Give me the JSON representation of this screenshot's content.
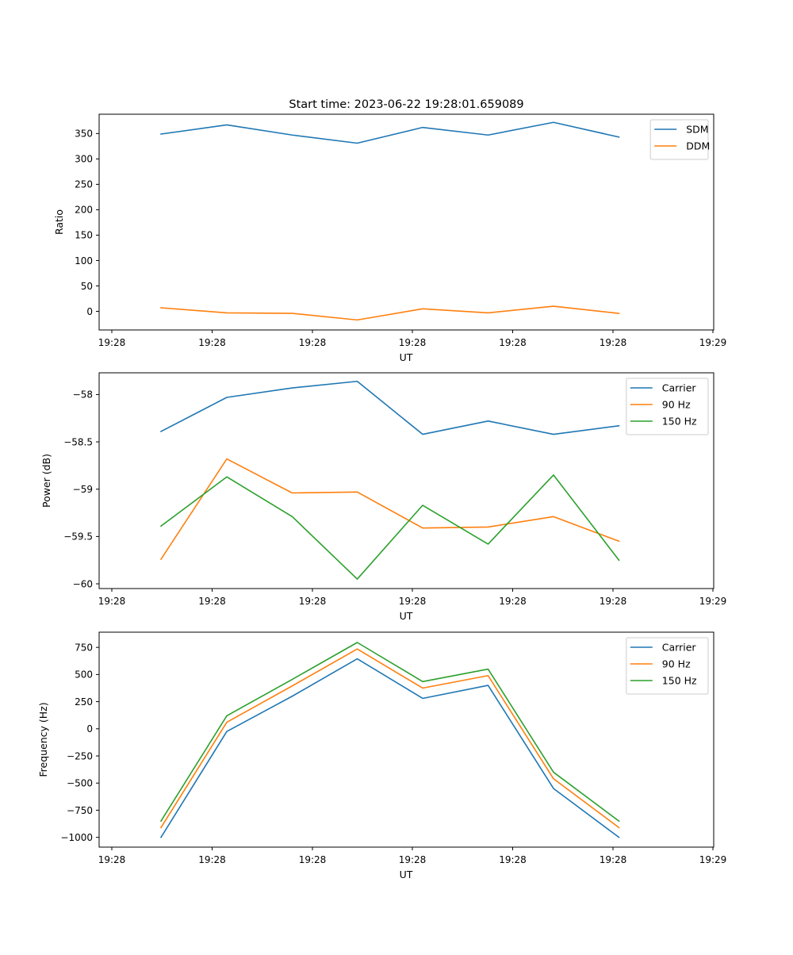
{
  "figure": {
    "title": "Start time: 2023-06-22 19:28:01.659089"
  },
  "chart_data": [
    {
      "type": "line",
      "xlabel": "UT",
      "ylabel": "Ratio",
      "xticks": [
        "19:28",
        "19:28",
        "19:28",
        "19:28",
        "19:28",
        "19:28",
        "19:29"
      ],
      "yticks": [
        0,
        50,
        100,
        150,
        200,
        250,
        300,
        350
      ],
      "ylim": [
        -36.7,
        388
      ],
      "legend_position": "top-right",
      "grid": false,
      "series": [
        {
          "name": "SDM",
          "color": "#1f77b4",
          "values": [
            349,
            367,
            347,
            331,
            362,
            347,
            372,
            343
          ]
        },
        {
          "name": "DDM",
          "color": "#ff7f0e",
          "values": [
            7,
            -3,
            -4,
            -17,
            5,
            -3,
            10,
            -4
          ]
        }
      ]
    },
    {
      "type": "line",
      "xlabel": "UT",
      "ylabel": "Power (dB)",
      "xticks": [
        "19:28",
        "19:28",
        "19:28",
        "19:28",
        "19:28",
        "19:28",
        "19:29"
      ],
      "yticks": [
        -58.0,
        -58.5,
        -59.0,
        -59.5,
        -60.0
      ],
      "ylim": [
        -60.05,
        -57.77
      ],
      "legend_position": "top-right",
      "grid": false,
      "series": [
        {
          "name": "Carrier",
          "color": "#1f77b4",
          "values": [
            -58.39,
            -58.03,
            -57.93,
            -57.86,
            -58.42,
            -58.28,
            -58.42,
            -58.33
          ]
        },
        {
          "name": "90 Hz",
          "color": "#ff7f0e",
          "values": [
            -59.74,
            -58.68,
            -59.04,
            -59.03,
            -59.41,
            -59.4,
            -59.29,
            -59.55
          ]
        },
        {
          "name": "150 Hz",
          "color": "#2ca02c",
          "values": [
            -59.39,
            -58.87,
            -59.29,
            -59.95,
            -59.17,
            -59.58,
            -58.85,
            -59.75
          ]
        }
      ]
    },
    {
      "type": "line",
      "xlabel": "UT",
      "ylabel": "Frequency (Hz)",
      "xticks": [
        "19:28",
        "19:28",
        "19:28",
        "19:28",
        "19:28",
        "19:28",
        "19:29"
      ],
      "yticks": [
        -1000,
        -750,
        -500,
        -250,
        0,
        250,
        500,
        750
      ],
      "ylim": [
        -1090,
        890
      ],
      "legend_position": "top-right",
      "grid": false,
      "series": [
        {
          "name": "Carrier",
          "color": "#1f77b4",
          "values": [
            -1000,
            -25,
            300,
            645,
            280,
            400,
            -550,
            -1000
          ]
        },
        {
          "name": "90 Hz",
          "color": "#ff7f0e",
          "values": [
            -910,
            60,
            395,
            735,
            375,
            490,
            -460,
            -910
          ]
        },
        {
          "name": "150 Hz",
          "color": "#2ca02c",
          "values": [
            -850,
            120,
            455,
            795,
            435,
            550,
            -400,
            -850
          ]
        }
      ]
    }
  ]
}
